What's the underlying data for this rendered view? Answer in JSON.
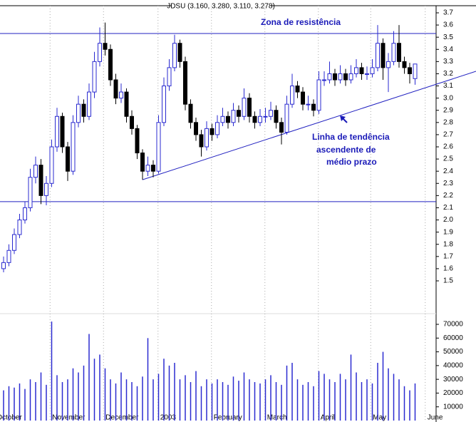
{
  "chart_data": {
    "type": "candlestick",
    "title": "JDSU (3.160, 3.280, 3.110, 3.278)",
    "annotations": [
      "Zona de resistência",
      "Linha de tendência",
      "ascendente de",
      "médio prazo"
    ],
    "months": [
      {
        "label": "October",
        "start": -1.7
      },
      {
        "label": "November",
        "start": 8.7
      },
      {
        "label": "December",
        "start": 18.7
      },
      {
        "label": "2003",
        "start": 28.9
      },
      {
        "label": "February",
        "start": 38.9
      },
      {
        "label": "March",
        "start": 48.9
      },
      {
        "label": "April",
        "start": 58.9
      },
      {
        "label": "May",
        "start": 68.7
      },
      {
        "label": "June",
        "start": 78.9
      }
    ],
    "ohlc": [
      [
        1.6,
        1.7,
        1.57,
        1.65
      ],
      [
        1.65,
        1.8,
        1.62,
        1.75
      ],
      [
        1.75,
        1.93,
        1.72,
        1.88
      ],
      [
        1.88,
        2.05,
        1.85,
        2.0
      ],
      [
        2.0,
        2.15,
        1.97,
        2.1
      ],
      [
        2.1,
        2.42,
        2.07,
        2.35
      ],
      [
        2.35,
        2.52,
        2.3,
        2.45
      ],
      [
        2.45,
        2.5,
        2.13,
        2.2
      ],
      [
        2.2,
        2.36,
        2.12,
        2.3
      ],
      [
        2.3,
        2.66,
        2.27,
        2.6
      ],
      [
        2.6,
        2.92,
        2.56,
        2.85
      ],
      [
        2.85,
        2.88,
        2.55,
        2.6
      ],
      [
        2.6,
        2.64,
        2.32,
        2.4
      ],
      [
        2.4,
        2.86,
        2.37,
        2.8
      ],
      [
        2.8,
        3.02,
        2.76,
        2.95
      ],
      [
        2.95,
        2.99,
        2.8,
        2.85
      ],
      [
        2.85,
        3.12,
        2.82,
        3.05
      ],
      [
        3.05,
        3.38,
        3.0,
        3.3
      ],
      [
        3.3,
        3.58,
        3.26,
        3.45
      ],
      [
        3.45,
        3.62,
        3.35,
        3.4
      ],
      [
        3.4,
        3.44,
        3.1,
        3.15
      ],
      [
        3.15,
        3.2,
        2.95,
        3.0
      ],
      [
        3.0,
        3.12,
        2.96,
        3.05
      ],
      [
        3.05,
        3.08,
        2.8,
        2.85
      ],
      [
        2.85,
        2.9,
        2.7,
        2.75
      ],
      [
        2.75,
        2.78,
        2.5,
        2.55
      ],
      [
        2.55,
        2.58,
        2.33,
        2.4
      ],
      [
        2.4,
        2.52,
        2.36,
        2.45
      ],
      [
        2.45,
        2.49,
        2.35,
        2.4
      ],
      [
        2.4,
        2.86,
        2.38,
        2.8
      ],
      [
        2.8,
        3.17,
        2.77,
        3.1
      ],
      [
        3.1,
        3.32,
        3.06,
        3.25
      ],
      [
        3.25,
        3.52,
        3.22,
        3.45
      ],
      [
        3.45,
        3.48,
        3.25,
        3.3
      ],
      [
        3.3,
        3.34,
        2.9,
        2.95
      ],
      [
        2.95,
        2.99,
        2.75,
        2.8
      ],
      [
        2.8,
        2.84,
        2.65,
        2.7
      ],
      [
        2.7,
        2.74,
        2.52,
        2.6
      ],
      [
        2.6,
        2.81,
        2.57,
        2.75
      ],
      [
        2.75,
        2.79,
        2.65,
        2.7
      ],
      [
        2.7,
        2.86,
        2.67,
        2.8
      ],
      [
        2.8,
        2.92,
        2.77,
        2.85
      ],
      [
        2.85,
        2.89,
        2.75,
        2.8
      ],
      [
        2.8,
        2.96,
        2.77,
        2.9
      ],
      [
        2.9,
        2.94,
        2.8,
        2.85
      ],
      [
        2.85,
        3.08,
        2.82,
        3.0
      ],
      [
        3.0,
        3.04,
        2.8,
        2.85
      ],
      [
        2.85,
        2.89,
        2.75,
        2.8
      ],
      [
        2.8,
        2.91,
        2.77,
        2.85
      ],
      [
        2.85,
        2.92,
        2.8,
        2.85
      ],
      [
        2.85,
        2.97,
        2.82,
        2.9
      ],
      [
        2.9,
        2.94,
        2.75,
        2.8
      ],
      [
        2.8,
        2.84,
        2.62,
        2.72
      ],
      [
        2.72,
        3.02,
        2.7,
        2.95
      ],
      [
        2.95,
        3.2,
        2.92,
        3.1
      ],
      [
        3.1,
        3.14,
        3.0,
        3.05
      ],
      [
        3.05,
        3.09,
        2.9,
        2.95
      ],
      [
        2.95,
        3.02,
        2.9,
        2.95
      ],
      [
        2.95,
        2.99,
        2.85,
        2.9
      ],
      [
        2.9,
        3.22,
        2.87,
        3.15
      ],
      [
        3.15,
        3.22,
        3.1,
        3.15
      ],
      [
        3.15,
        3.3,
        3.12,
        3.2
      ],
      [
        3.2,
        3.24,
        3.1,
        3.15
      ],
      [
        3.15,
        3.27,
        3.12,
        3.2
      ],
      [
        3.2,
        3.24,
        3.1,
        3.15
      ],
      [
        3.15,
        3.27,
        3.12,
        3.2
      ],
      [
        3.2,
        3.32,
        3.17,
        3.25
      ],
      [
        3.25,
        3.29,
        3.15,
        3.2
      ],
      [
        3.2,
        3.26,
        3.15,
        3.2
      ],
      [
        3.2,
        3.32,
        3.17,
        3.25
      ],
      [
        3.25,
        3.6,
        3.22,
        3.45
      ],
      [
        3.45,
        3.49,
        3.15,
        3.25
      ],
      [
        3.25,
        3.37,
        3.05,
        3.3
      ],
      [
        3.3,
        3.55,
        3.27,
        3.45
      ],
      [
        3.45,
        3.6,
        3.25,
        3.3
      ],
      [
        3.3,
        3.34,
        3.2,
        3.25
      ],
      [
        3.25,
        3.29,
        3.12,
        3.2
      ],
      [
        3.16,
        3.28,
        3.11,
        3.28
      ]
    ],
    "volume": [
      22000,
      25000,
      24000,
      27000,
      23000,
      30000,
      28000,
      35000,
      26000,
      72000,
      33000,
      28000,
      30000,
      38000,
      35000,
      40000,
      63000,
      45000,
      48000,
      38000,
      30000,
      27000,
      35000,
      30000,
      28000,
      25000,
      32000,
      60000,
      30000,
      34000,
      45000,
      40000,
      42000,
      30000,
      33000,
      28000,
      36000,
      25000,
      30000,
      27000,
      30000,
      28000,
      26000,
      32000,
      29000,
      35000,
      30000,
      28000,
      27000,
      30000,
      33000,
      28000,
      26000,
      40000,
      42000,
      30000,
      26000,
      28000,
      25000,
      36000,
      34000,
      30000,
      28000,
      34000,
      30000,
      48000,
      35000,
      28000,
      30000,
      27000,
      42000,
      50000,
      38000,
      34000,
      30000,
      25000,
      22000,
      27000
    ],
    "up_color": "#2a2ad0",
    "down_color": "#000000",
    "line_color": "#2020c0",
    "ylim": [
      1.5,
      3.7
    ],
    "yticks": [
      1.5,
      1.6,
      1.7,
      1.8,
      1.9,
      {
        "value": 2,
        "label": "2.0"
      },
      2.1,
      2.2,
      2.3,
      2.4,
      2.5,
      2.6,
      2.7,
      2.8,
      2.9,
      {
        "value": 3,
        "label": "3.0"
      },
      3.1,
      3.2,
      3.3,
      3.4,
      3.5,
      3.6,
      3.7
    ],
    "y2lim": [
      0,
      70000
    ],
    "y2ticks": [
      10000,
      20000,
      30000,
      40000,
      50000,
      60000,
      70000
    ],
    "resistance": 3.53,
    "support": 2.15,
    "trendline": [
      [
        26,
        2.33
      ],
      [
        88.4,
        3.22
      ]
    ]
  }
}
